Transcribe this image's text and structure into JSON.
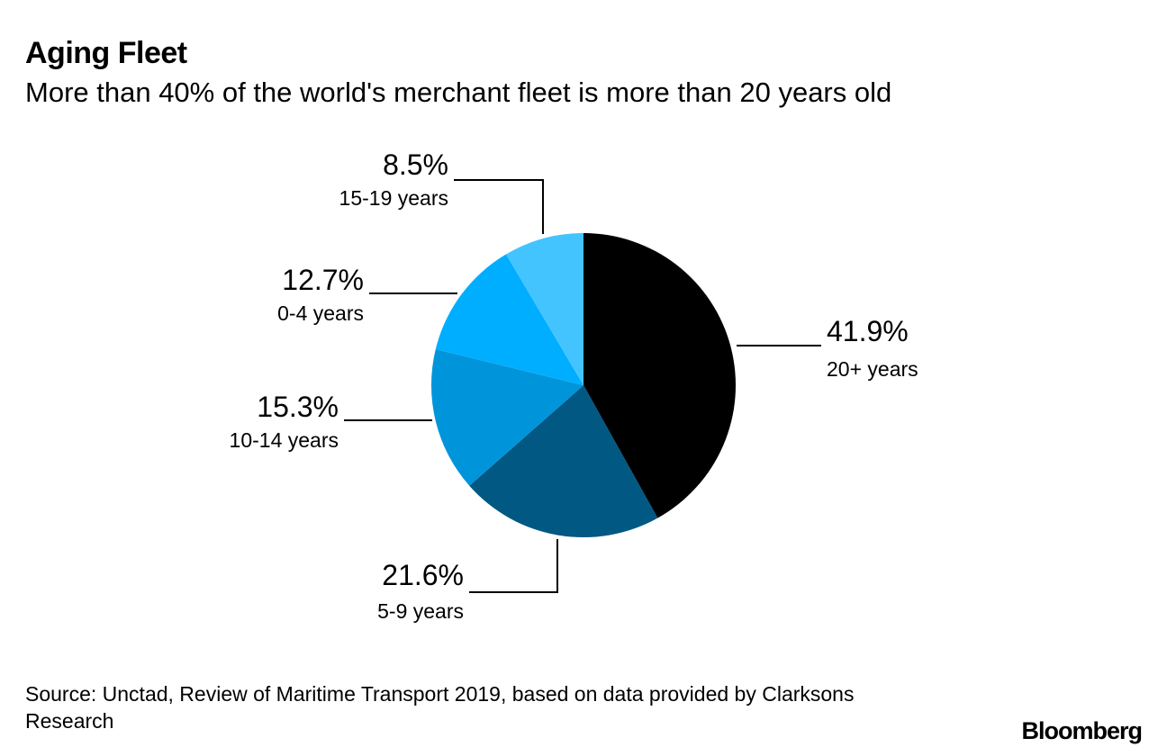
{
  "title": "Aging Fleet",
  "subtitle": "More than 40% of the world's merchant fleet is more than 20 years old",
  "source": "Source: Unctad, Review of Maritime Transport 2019, based on data provided by Clarksons Research",
  "brand": "Bloomberg",
  "chart_data": {
    "type": "pie",
    "start": "12 o'clock, clockwise",
    "slices": [
      {
        "label": "20+ years",
        "value": 41.9,
        "value_label": "41.9%",
        "color": "#000000"
      },
      {
        "label": "5-9 years",
        "value": 21.6,
        "value_label": "21.6%",
        "color": "#005883"
      },
      {
        "label": "10-14 years",
        "value": 15.3,
        "value_label": "15.3%",
        "color": "#0095DA"
      },
      {
        "label": "0-4 years",
        "value": 12.7,
        "value_label": "12.7%",
        "color": "#00AEFF"
      },
      {
        "label": "15-19 years",
        "value": 8.5,
        "value_label": "8.5%",
        "color": "#44C4FF"
      }
    ]
  }
}
